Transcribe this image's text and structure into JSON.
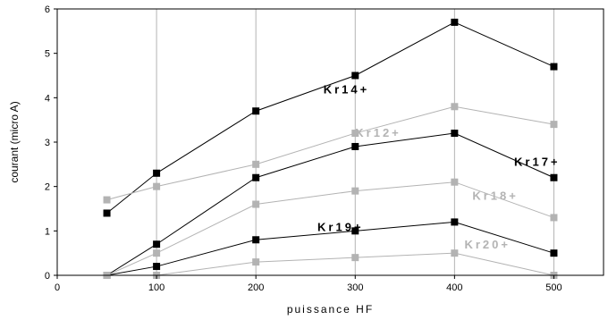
{
  "chart_data": {
    "type": "line",
    "xlabel": "puissance HF",
    "ylabel": "courant (micro A)",
    "xlim": [
      0,
      550
    ],
    "ylim": [
      0,
      6
    ],
    "xticks": [
      0,
      100,
      200,
      300,
      400,
      500
    ],
    "yticks": [
      0,
      1,
      2,
      3,
      4,
      5,
      6
    ],
    "grid": "vertical",
    "legend": "inline",
    "series": [
      {
        "name": "Kr14+",
        "color": "#000000",
        "x": [
          50,
          100,
          200,
          300,
          400,
          500
        ],
        "y": [
          1.4,
          2.3,
          3.7,
          4.5,
          5.7,
          4.7
        ]
      },
      {
        "name": "Kr12+",
        "color": "#b3b3b3",
        "x": [
          50,
          100,
          200,
          300,
          400,
          500
        ],
        "y": [
          1.7,
          2.0,
          2.5,
          3.2,
          3.8,
          3.4
        ]
      },
      {
        "name": "Kr17+",
        "color": "#000000",
        "x": [
          50,
          100,
          200,
          300,
          400,
          500
        ],
        "y": [
          0.0,
          0.7,
          2.2,
          2.9,
          3.2,
          2.2
        ]
      },
      {
        "name": "Kr18+",
        "color": "#b3b3b3",
        "x": [
          50,
          100,
          200,
          300,
          400,
          500
        ],
        "y": [
          0.0,
          0.5,
          1.6,
          1.9,
          2.1,
          1.3
        ]
      },
      {
        "name": "Kr19+",
        "color": "#000000",
        "x": [
          50,
          100,
          200,
          300,
          400,
          500
        ],
        "y": [
          0.0,
          0.2,
          0.8,
          1.0,
          1.2,
          0.5
        ]
      },
      {
        "name": "Kr20+",
        "color": "#b3b3b3",
        "x": [
          50,
          100,
          200,
          300,
          400,
          500
        ],
        "y": [
          0.0,
          0.0,
          0.3,
          0.4,
          0.5,
          0.0
        ]
      }
    ],
    "labels": [
      {
        "text": "Kr14+",
        "x": 268,
        "y": 4.1,
        "color": "#000000"
      },
      {
        "text": "Kr12+",
        "x": 300,
        "y": 3.12,
        "color": "#b3b3b3"
      },
      {
        "text": "Kr17+",
        "x": 460,
        "y": 2.47,
        "color": "#000000"
      },
      {
        "text": "Kr18+",
        "x": 418,
        "y": 1.7,
        "color": "#b3b3b3"
      },
      {
        "text": "Kr19+",
        "x": 262,
        "y": 1.0,
        "color": "#000000"
      },
      {
        "text": "Kr20+",
        "x": 410,
        "y": 0.6,
        "color": "#b3b3b3"
      }
    ]
  }
}
